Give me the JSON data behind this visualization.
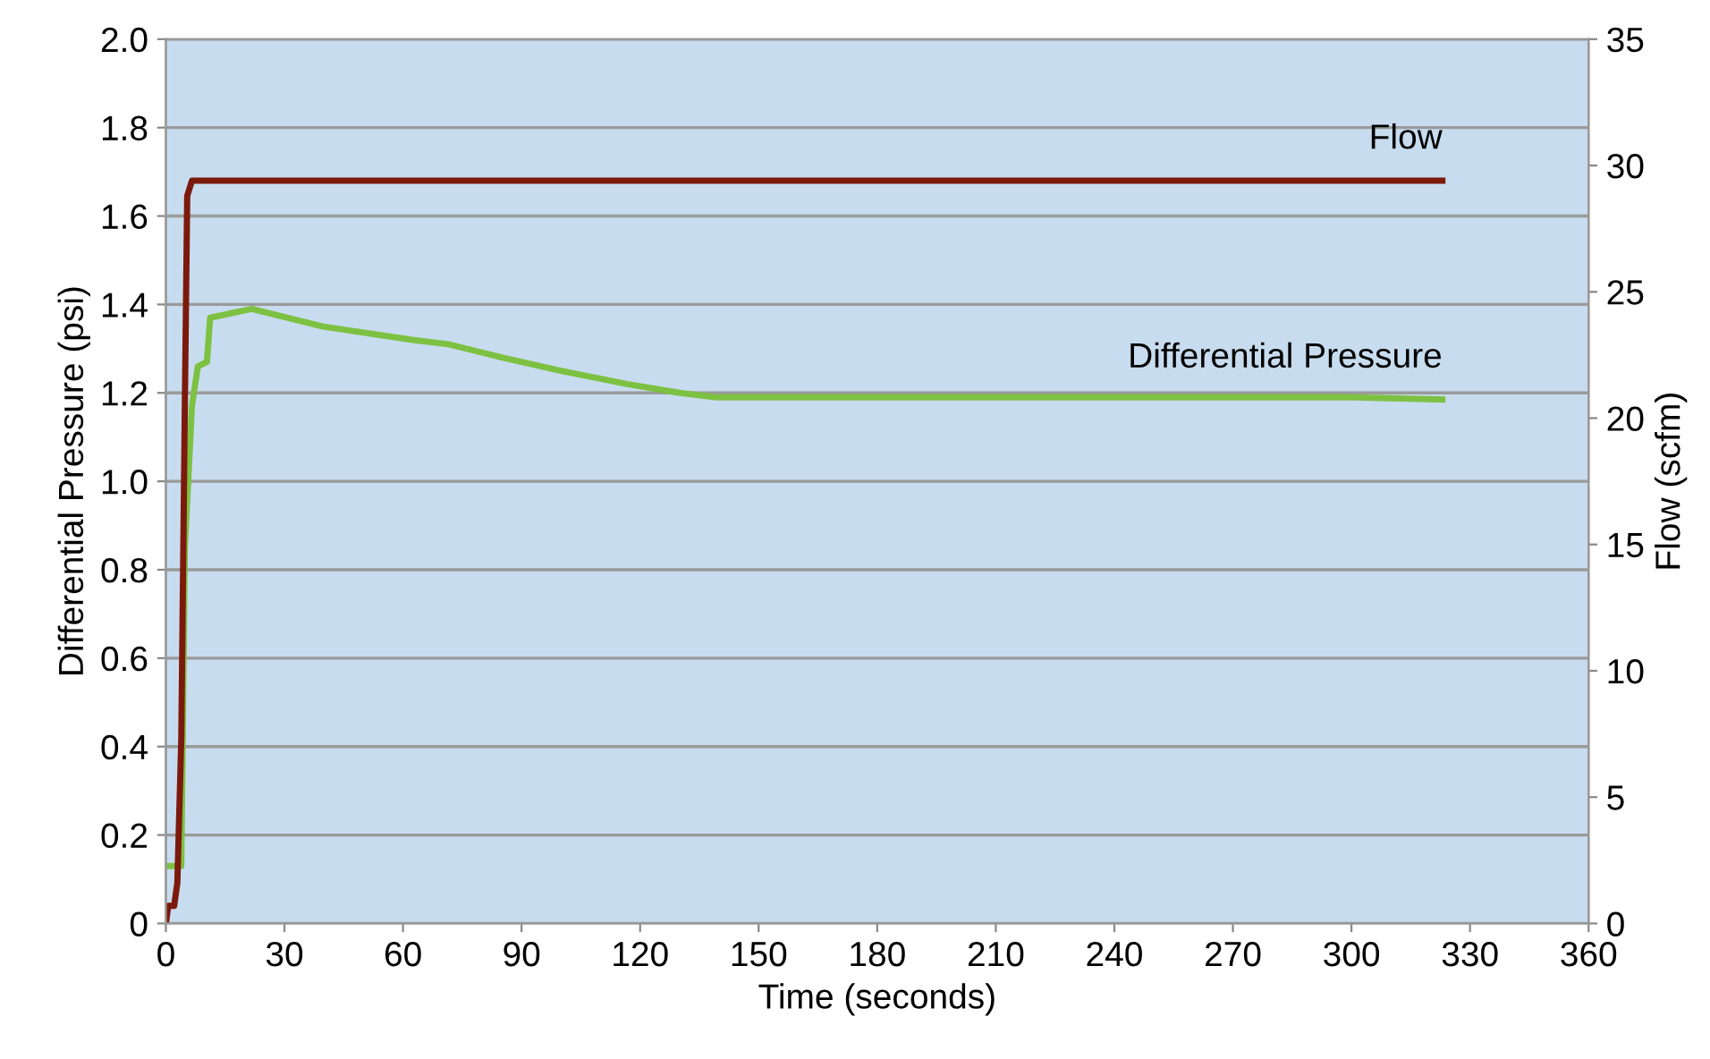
{
  "chart_data": {
    "type": "line",
    "xlabel": "Time (seconds)",
    "ylabel": "Differential Pressure (psi)",
    "y2label": "Flow (scfm)",
    "xlim": [
      0,
      360
    ],
    "xticks": [
      0,
      30,
      60,
      90,
      120,
      150,
      180,
      210,
      240,
      270,
      300,
      330,
      360
    ],
    "ylim": [
      0,
      2.0
    ],
    "yticks": [
      0,
      0.2,
      0.4,
      0.6,
      0.8,
      {
        "value": 1.0,
        "label": "1.0"
      },
      1.2,
      1.4,
      1.6,
      1.8,
      {
        "value": 2.0,
        "label": "2.0"
      }
    ],
    "y2lim": [
      0,
      35
    ],
    "y2ticks": [
      0,
      5,
      10,
      15,
      20,
      25,
      30,
      35
    ],
    "grid": "y",
    "legend": false,
    "line_style": "solid",
    "series": [
      {
        "name": "Flow",
        "color": "#7b1a0c",
        "axis": "y2",
        "x": [
          0,
          0.6,
          2.1,
          2.9,
          3.9,
          4.8,
          5.4,
          6.6,
          30,
          60,
          90,
          120,
          150,
          180,
          210,
          240,
          270,
          300,
          323
        ],
        "values": [
          0,
          0.7,
          0.7,
          1.6,
          7.3,
          20.5,
          28.8,
          29.4,
          29.4,
          29.4,
          29.4,
          29.4,
          29.4,
          29.4,
          29.4,
          29.4,
          29.4,
          29.4,
          29.4
        ]
      },
      {
        "name": "Differential Pressure",
        "color": "#7dc142",
        "x": [
          0,
          2.5,
          3.9,
          4.8,
          6.6,
          8.1,
          10.4,
          11.2,
          21.7,
          39.8,
          62.4,
          71.5,
          85,
          100,
          116.7,
          130,
          139.3,
          160,
          200,
          250,
          300,
          323
        ],
        "values": [
          0.13,
          0.13,
          0.13,
          0.85,
          1.17,
          1.26,
          1.27,
          1.37,
          1.39,
          1.35,
          1.32,
          1.31,
          1.28,
          1.25,
          1.22,
          1.2,
          1.19,
          1.19,
          1.19,
          1.19,
          1.19,
          1.185
        ]
      }
    ]
  }
}
